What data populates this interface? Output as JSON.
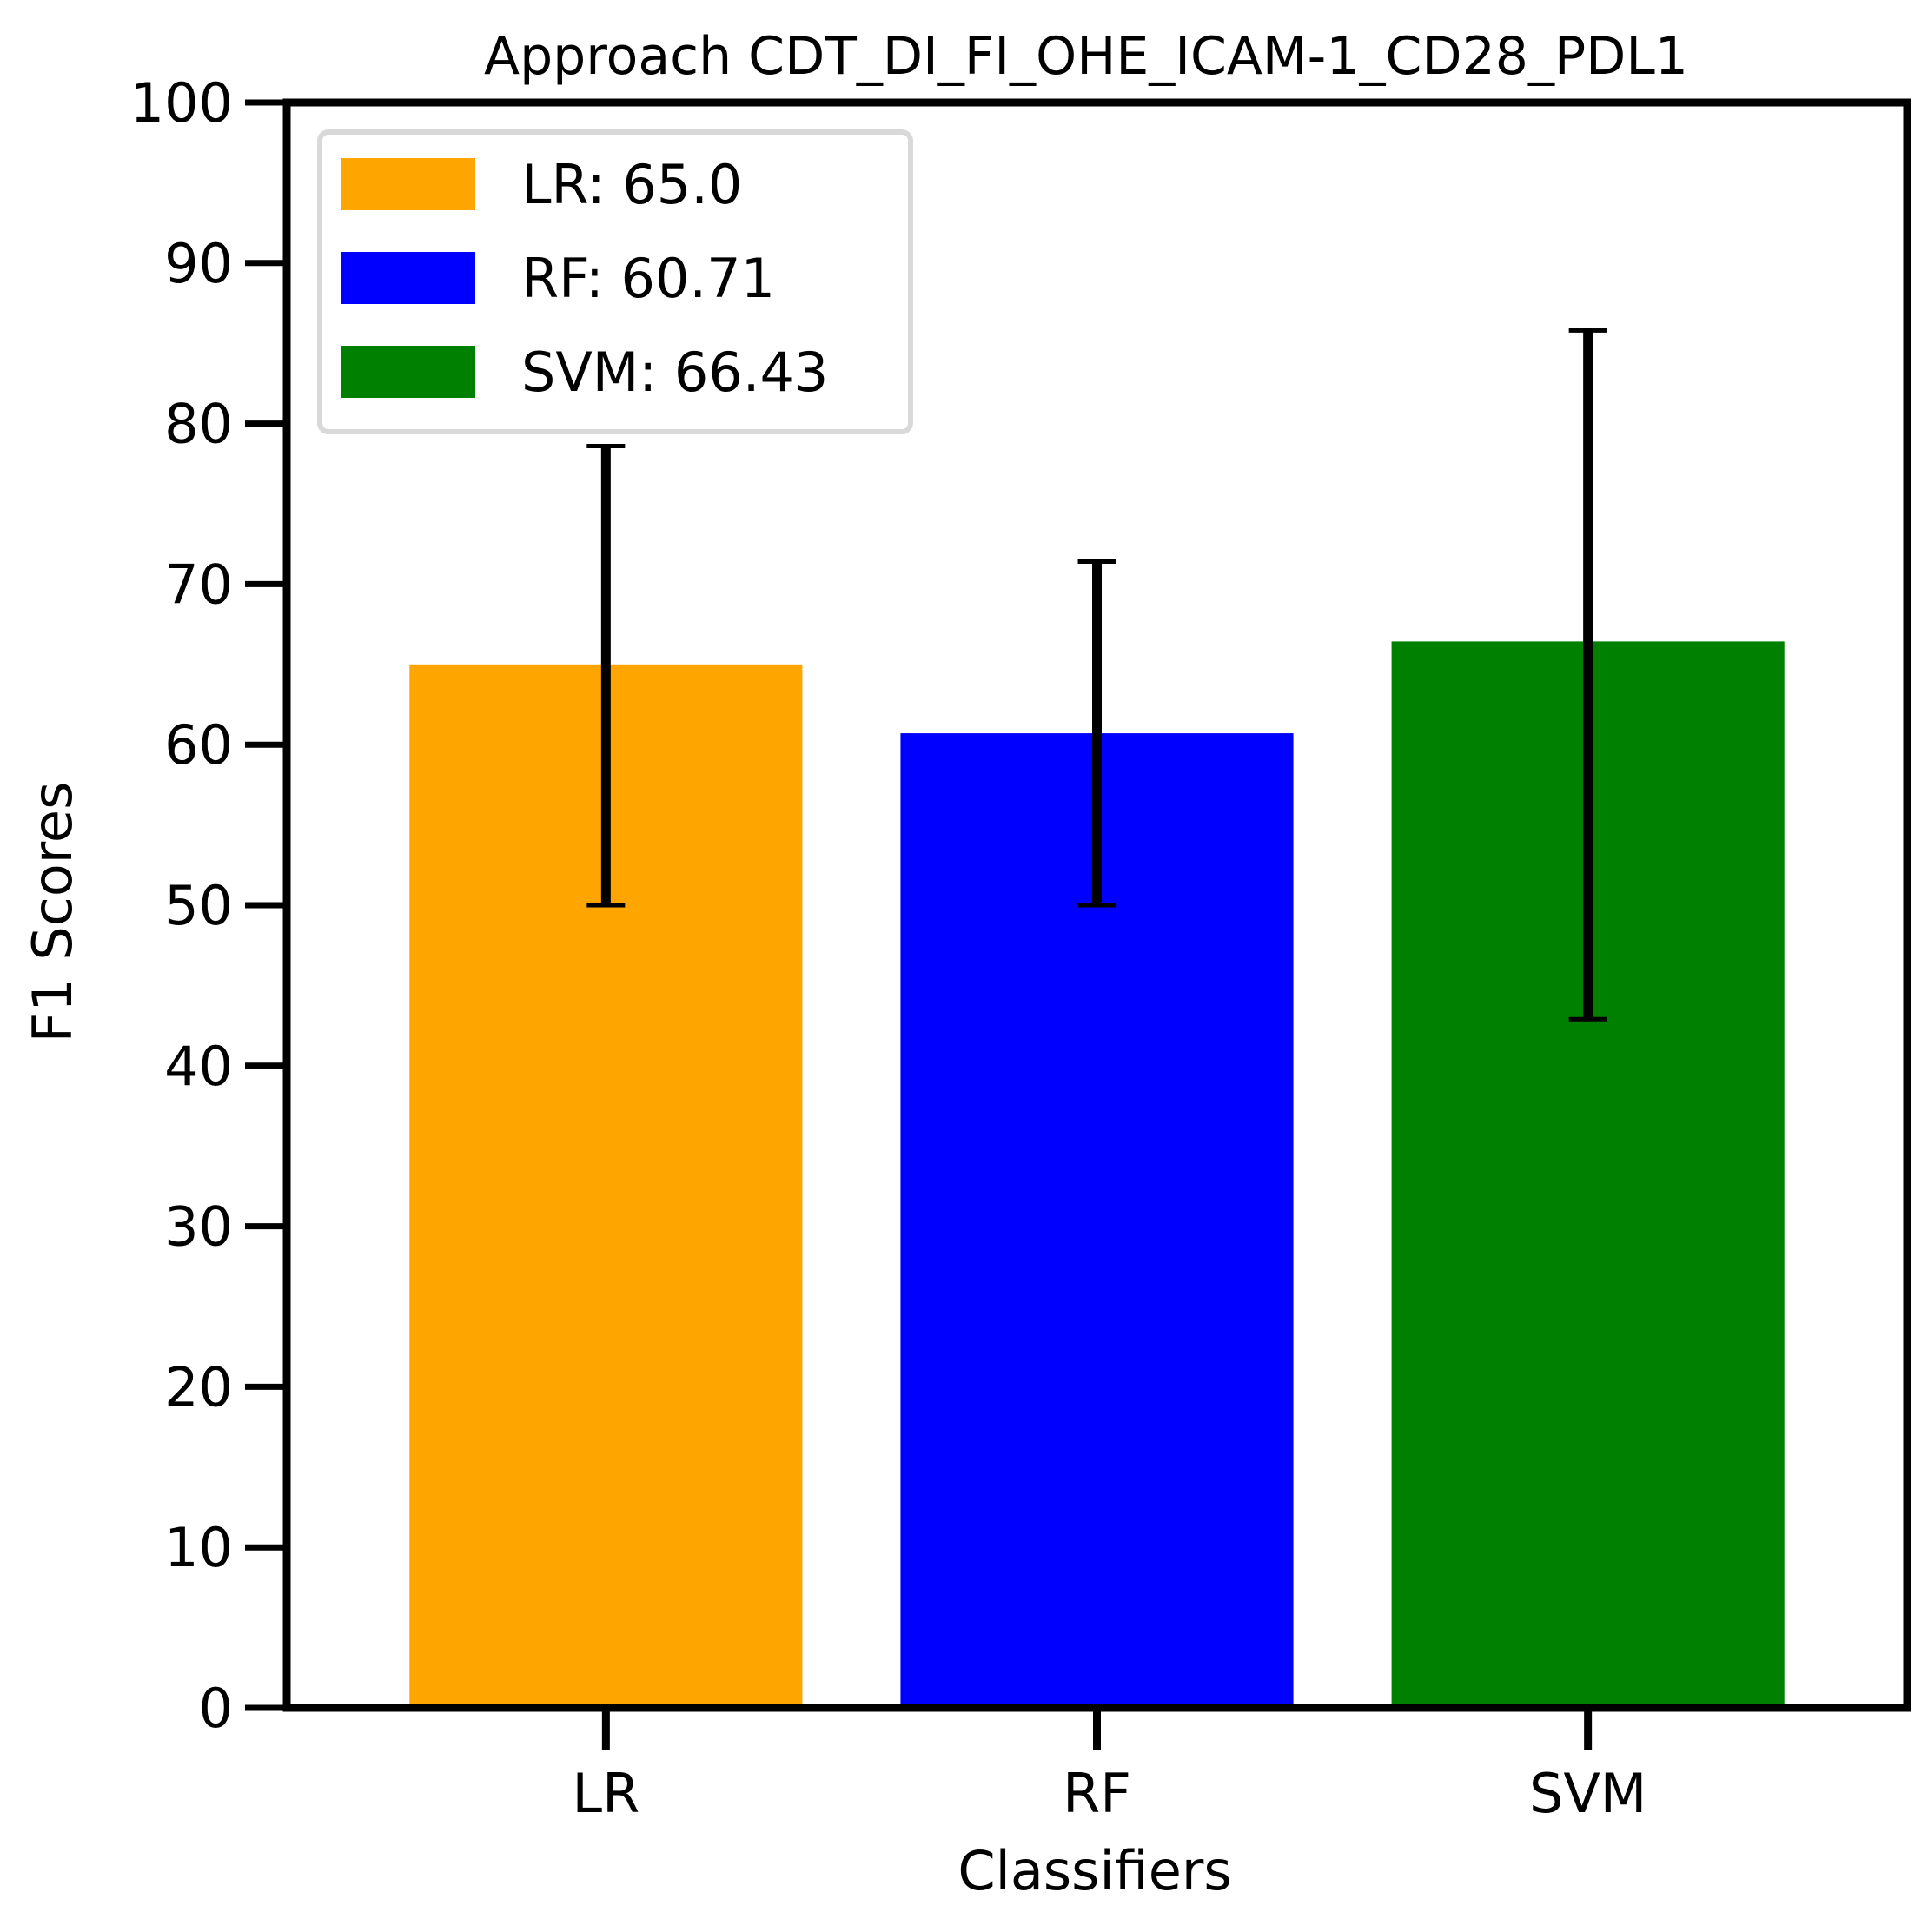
{
  "chart_data": {
    "type": "bar",
    "title": "Approach CDT_DI_FI_OHE_ICAM-1_CD28_PDL1",
    "xlabel": "Classifiers",
    "ylabel": "F1 Scores",
    "ylim": [
      0,
      100
    ],
    "yticks": [
      0,
      10,
      20,
      30,
      40,
      50,
      60,
      70,
      80,
      90,
      100
    ],
    "categories": [
      "LR",
      "RF",
      "SVM"
    ],
    "values": [
      65.0,
      60.71,
      66.43
    ],
    "error_low": [
      50.0,
      50.0,
      42.9
    ],
    "error_high": [
      78.6,
      71.4,
      85.8
    ],
    "colors": [
      "#FFA500",
      "#0000FF",
      "#008000"
    ],
    "legend": {
      "placement": "upper-left",
      "entries": [
        "LR: 65.0",
        "RF: 60.71",
        "SVM: 66.43"
      ]
    },
    "grid": false
  }
}
